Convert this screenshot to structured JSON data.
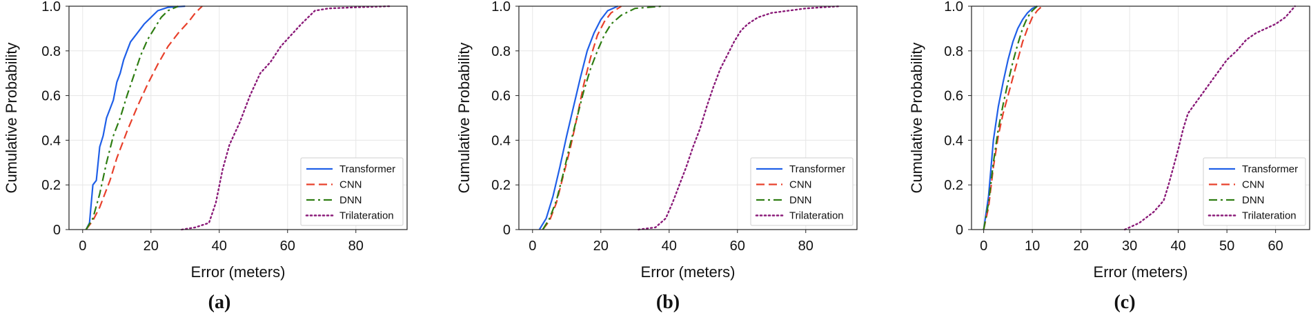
{
  "colors": {
    "Transformer": "#1f5fe8",
    "CNN": "#e8402b",
    "DNN": "#2e7d12",
    "Trilateration": "#8a1a78"
  },
  "chart_data": [
    {
      "type": "line",
      "caption": "(a)",
      "xlabel": "Error (meters)",
      "ylabel": "Cumulative Probability",
      "xlim": [
        -4,
        95
      ],
      "ylim": [
        0,
        1.0
      ],
      "xticks": [
        0,
        20,
        40,
        60,
        80
      ],
      "yticks": [
        0,
        0.2,
        0.4,
        0.6,
        0.8,
        1.0
      ],
      "ytick_labels": [
        "0",
        "0.2",
        "0.4",
        "0.6",
        "0.8",
        "1.0"
      ],
      "grid": true,
      "legend_position": "lower-right",
      "series": [
        {
          "name": "Transformer",
          "style": "solid",
          "points": [
            [
              1,
              0
            ],
            [
              2,
              0.03
            ],
            [
              3,
              0.2
            ],
            [
              4,
              0.22
            ],
            [
              5,
              0.37
            ],
            [
              6,
              0.42
            ],
            [
              7,
              0.5
            ],
            [
              8,
              0.54
            ],
            [
              9,
              0.58
            ],
            [
              10,
              0.66
            ],
            [
              11,
              0.7
            ],
            [
              12,
              0.76
            ],
            [
              13,
              0.8
            ],
            [
              14,
              0.84
            ],
            [
              16,
              0.88
            ],
            [
              18,
              0.92
            ],
            [
              20,
              0.95
            ],
            [
              22,
              0.98
            ],
            [
              25,
              0.995
            ],
            [
              30,
              1.0
            ]
          ]
        },
        {
          "name": "CNN",
          "style": "dashed",
          "points": [
            [
              1,
              0
            ],
            [
              3,
              0.04
            ],
            [
              5,
              0.1
            ],
            [
              8,
              0.22
            ],
            [
              10,
              0.32
            ],
            [
              13,
              0.44
            ],
            [
              16,
              0.55
            ],
            [
              19,
              0.65
            ],
            [
              22,
              0.74
            ],
            [
              25,
              0.82
            ],
            [
              28,
              0.88
            ],
            [
              31,
              0.93
            ],
            [
              33,
              0.97
            ],
            [
              35,
              1.0
            ]
          ]
        },
        {
          "name": "DNN",
          "style": "dashdot",
          "points": [
            [
              1,
              0
            ],
            [
              3,
              0.05
            ],
            [
              5,
              0.16
            ],
            [
              7,
              0.3
            ],
            [
              9,
              0.42
            ],
            [
              11,
              0.5
            ],
            [
              13,
              0.6
            ],
            [
              15,
              0.69
            ],
            [
              17,
              0.78
            ],
            [
              19,
              0.85
            ],
            [
              21,
              0.9
            ],
            [
              23,
              0.95
            ],
            [
              25,
              0.98
            ],
            [
              28,
              1.0
            ]
          ]
        },
        {
          "name": "Trilateration",
          "style": "dotted",
          "points": [
            [
              29,
              0
            ],
            [
              33,
              0.01
            ],
            [
              37,
              0.03
            ],
            [
              39,
              0.12
            ],
            [
              41,
              0.27
            ],
            [
              43,
              0.38
            ],
            [
              46,
              0.48
            ],
            [
              49,
              0.6
            ],
            [
              52,
              0.7
            ],
            [
              55,
              0.75
            ],
            [
              58,
              0.82
            ],
            [
              61,
              0.87
            ],
            [
              64,
              0.92
            ],
            [
              66,
              0.95
            ],
            [
              68,
              0.98
            ],
            [
              72,
              0.99
            ],
            [
              80,
              0.995
            ],
            [
              90,
              1.0
            ]
          ]
        }
      ]
    },
    {
      "type": "line",
      "caption": "(b)",
      "xlabel": "Error (meters)",
      "ylabel": "Cumulative Probability",
      "xlim": [
        -4,
        95
      ],
      "ylim": [
        0,
        1.0
      ],
      "xticks": [
        0,
        20,
        40,
        60,
        80
      ],
      "yticks": [
        0,
        0.2,
        0.4,
        0.6,
        0.8,
        1.0
      ],
      "ytick_labels": [
        "0",
        "0.2",
        "0.4",
        "0.6",
        "0.8",
        "1.0"
      ],
      "grid": true,
      "legend_position": "lower-right",
      "series": [
        {
          "name": "Transformer",
          "style": "solid",
          "points": [
            [
              2,
              0
            ],
            [
              4,
              0.05
            ],
            [
              6,
              0.15
            ],
            [
              8,
              0.28
            ],
            [
              10,
              0.42
            ],
            [
              12,
              0.55
            ],
            [
              14,
              0.68
            ],
            [
              16,
              0.8
            ],
            [
              18,
              0.88
            ],
            [
              20,
              0.94
            ],
            [
              22,
              0.98
            ],
            [
              25,
              1.0
            ]
          ]
        },
        {
          "name": "CNN",
          "style": "dashed",
          "points": [
            [
              3,
              0
            ],
            [
              5,
              0.04
            ],
            [
              7,
              0.12
            ],
            [
              9,
              0.24
            ],
            [
              11,
              0.36
            ],
            [
              13,
              0.5
            ],
            [
              15,
              0.65
            ],
            [
              17,
              0.77
            ],
            [
              19,
              0.87
            ],
            [
              21,
              0.93
            ],
            [
              23,
              0.97
            ],
            [
              26,
              1.0
            ]
          ]
        },
        {
          "name": "DNN",
          "style": "dashdot",
          "points": [
            [
              3,
              0
            ],
            [
              5,
              0.05
            ],
            [
              7,
              0.13
            ],
            [
              9,
              0.25
            ],
            [
              11,
              0.38
            ],
            [
              13,
              0.5
            ],
            [
              15,
              0.62
            ],
            [
              17,
              0.72
            ],
            [
              19,
              0.8
            ],
            [
              21,
              0.87
            ],
            [
              23,
              0.92
            ],
            [
              26,
              0.96
            ],
            [
              30,
              0.99
            ],
            [
              38,
              1.0
            ]
          ]
        },
        {
          "name": "Trilateration",
          "style": "dotted",
          "points": [
            [
              31,
              0
            ],
            [
              36,
              0.01
            ],
            [
              39,
              0.05
            ],
            [
              41,
              0.12
            ],
            [
              43,
              0.2
            ],
            [
              45,
              0.28
            ],
            [
              47,
              0.37
            ],
            [
              49,
              0.45
            ],
            [
              51,
              0.55
            ],
            [
              53,
              0.64
            ],
            [
              55,
              0.72
            ],
            [
              57,
              0.78
            ],
            [
              59,
              0.84
            ],
            [
              61,
              0.89
            ],
            [
              63,
              0.92
            ],
            [
              66,
              0.95
            ],
            [
              70,
              0.97
            ],
            [
              80,
              0.99
            ],
            [
              90,
              1.0
            ]
          ]
        }
      ]
    },
    {
      "type": "line",
      "caption": "(c)",
      "xlabel": "Error (meters)",
      "ylabel": "Cumulative Probability",
      "xlim": [
        -2.5,
        67
      ],
      "ylim": [
        0,
        1.0
      ],
      "xticks": [
        0,
        10,
        20,
        30,
        40,
        50,
        60
      ],
      "yticks": [
        0,
        0.2,
        0.4,
        0.6,
        0.8,
        1.0
      ],
      "ytick_labels": [
        "0",
        "0.2",
        "0.4",
        "0.6",
        "0.8",
        "1.0"
      ],
      "grid": true,
      "legend_position": "lower-right",
      "series": [
        {
          "name": "Transformer",
          "style": "solid",
          "points": [
            [
              0,
              0
            ],
            [
              1,
              0.15
            ],
            [
              2,
              0.4
            ],
            [
              3,
              0.55
            ],
            [
              4,
              0.66
            ],
            [
              5,
              0.76
            ],
            [
              6,
              0.84
            ],
            [
              7,
              0.9
            ],
            [
              8,
              0.94
            ],
            [
              9,
              0.97
            ],
            [
              10,
              0.99
            ],
            [
              11,
              1.0
            ]
          ]
        },
        {
          "name": "CNN",
          "style": "dashed",
          "points": [
            [
              0,
              0
            ],
            [
              1,
              0.1
            ],
            [
              2,
              0.28
            ],
            [
              3,
              0.42
            ],
            [
              4,
              0.52
            ],
            [
              5,
              0.6
            ],
            [
              6,
              0.68
            ],
            [
              7,
              0.76
            ],
            [
              8,
              0.84
            ],
            [
              9,
              0.9
            ],
            [
              10,
              0.95
            ],
            [
              11,
              0.98
            ],
            [
              12,
              1.0
            ]
          ]
        },
        {
          "name": "DNN",
          "style": "dashdot",
          "points": [
            [
              0,
              0
            ],
            [
              1,
              0.12
            ],
            [
              2,
              0.3
            ],
            [
              3,
              0.45
            ],
            [
              4,
              0.56
            ],
            [
              5,
              0.66
            ],
            [
              6,
              0.75
            ],
            [
              7,
              0.83
            ],
            [
              8,
              0.9
            ],
            [
              9,
              0.95
            ],
            [
              10,
              0.98
            ],
            [
              11,
              1.0
            ]
          ]
        },
        {
          "name": "Trilateration",
          "style": "dotted",
          "points": [
            [
              29,
              0
            ],
            [
              32,
              0.03
            ],
            [
              35,
              0.08
            ],
            [
              37,
              0.13
            ],
            [
              38,
              0.2
            ],
            [
              39,
              0.28
            ],
            [
              40,
              0.36
            ],
            [
              41,
              0.45
            ],
            [
              42,
              0.52
            ],
            [
              44,
              0.58
            ],
            [
              46,
              0.64
            ],
            [
              48,
              0.7
            ],
            [
              50,
              0.76
            ],
            [
              52,
              0.8
            ],
            [
              54,
              0.85
            ],
            [
              56,
              0.88
            ],
            [
              58,
              0.9
            ],
            [
              60,
              0.92
            ],
            [
              62,
              0.95
            ],
            [
              64,
              1.0
            ]
          ]
        }
      ]
    }
  ]
}
